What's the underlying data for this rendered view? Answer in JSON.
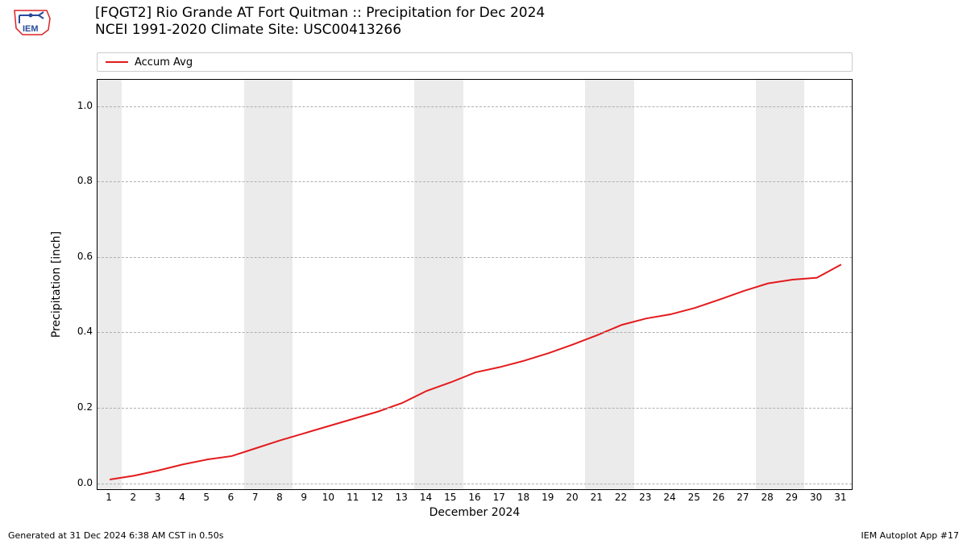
{
  "title_line1": "[FQGT2] Rio Grande  AT Fort Quitman :: Precipitation for Dec 2024",
  "title_line2": "NCEI 1991-2020 Climate Site: USC00413266",
  "legend": {
    "label": "Accum Avg",
    "color": "#e41a1c"
  },
  "ylabel": "Precipitation [inch]",
  "xlabel": "December 2024",
  "footer_left": "Generated at 31 Dec 2024 6:38 AM CST in 0.50s",
  "footer_right": "IEM Autoplot App #17",
  "chart": {
    "type": "line",
    "background_color": "#ffffff",
    "weekend_band_color": "#ebebeb",
    "grid_color": "#b0b0b0",
    "grid_dash": "2,2",
    "border_color": "#000000",
    "line_color": "#e41a1c",
    "line_width": 2,
    "font_size_title": 17,
    "font_size_label": 14,
    "font_size_tick": 12,
    "xlim": [
      0.5,
      31.5
    ],
    "ylim": [
      -0.02,
      1.07
    ],
    "yticks": [
      0.0,
      0.2,
      0.4,
      0.6,
      0.8,
      1.0
    ],
    "xticks": [
      1,
      2,
      3,
      4,
      5,
      6,
      7,
      8,
      9,
      10,
      11,
      12,
      13,
      14,
      15,
      16,
      17,
      18,
      19,
      20,
      21,
      22,
      23,
      24,
      25,
      26,
      27,
      28,
      29,
      30,
      31
    ],
    "weekend_days": [
      1,
      7,
      8,
      14,
      15,
      21,
      22,
      28,
      29
    ],
    "series": {
      "x": [
        1,
        2,
        3,
        4,
        5,
        6,
        7,
        8,
        9,
        10,
        11,
        12,
        13,
        14,
        15,
        16,
        17,
        18,
        19,
        20,
        21,
        22,
        23,
        24,
        25,
        26,
        27,
        28,
        29,
        30,
        31
      ],
      "y": [
        0.01,
        0.02,
        0.034,
        0.05,
        0.063,
        0.072,
        0.093,
        0.114,
        0.133,
        0.152,
        0.171,
        0.19,
        0.213,
        0.245,
        0.268,
        0.294,
        0.308,
        0.325,
        0.345,
        0.368,
        0.393,
        0.42,
        0.437,
        0.448,
        0.465,
        0.487,
        0.51,
        0.53,
        0.54,
        0.545,
        0.58
      ]
    }
  }
}
